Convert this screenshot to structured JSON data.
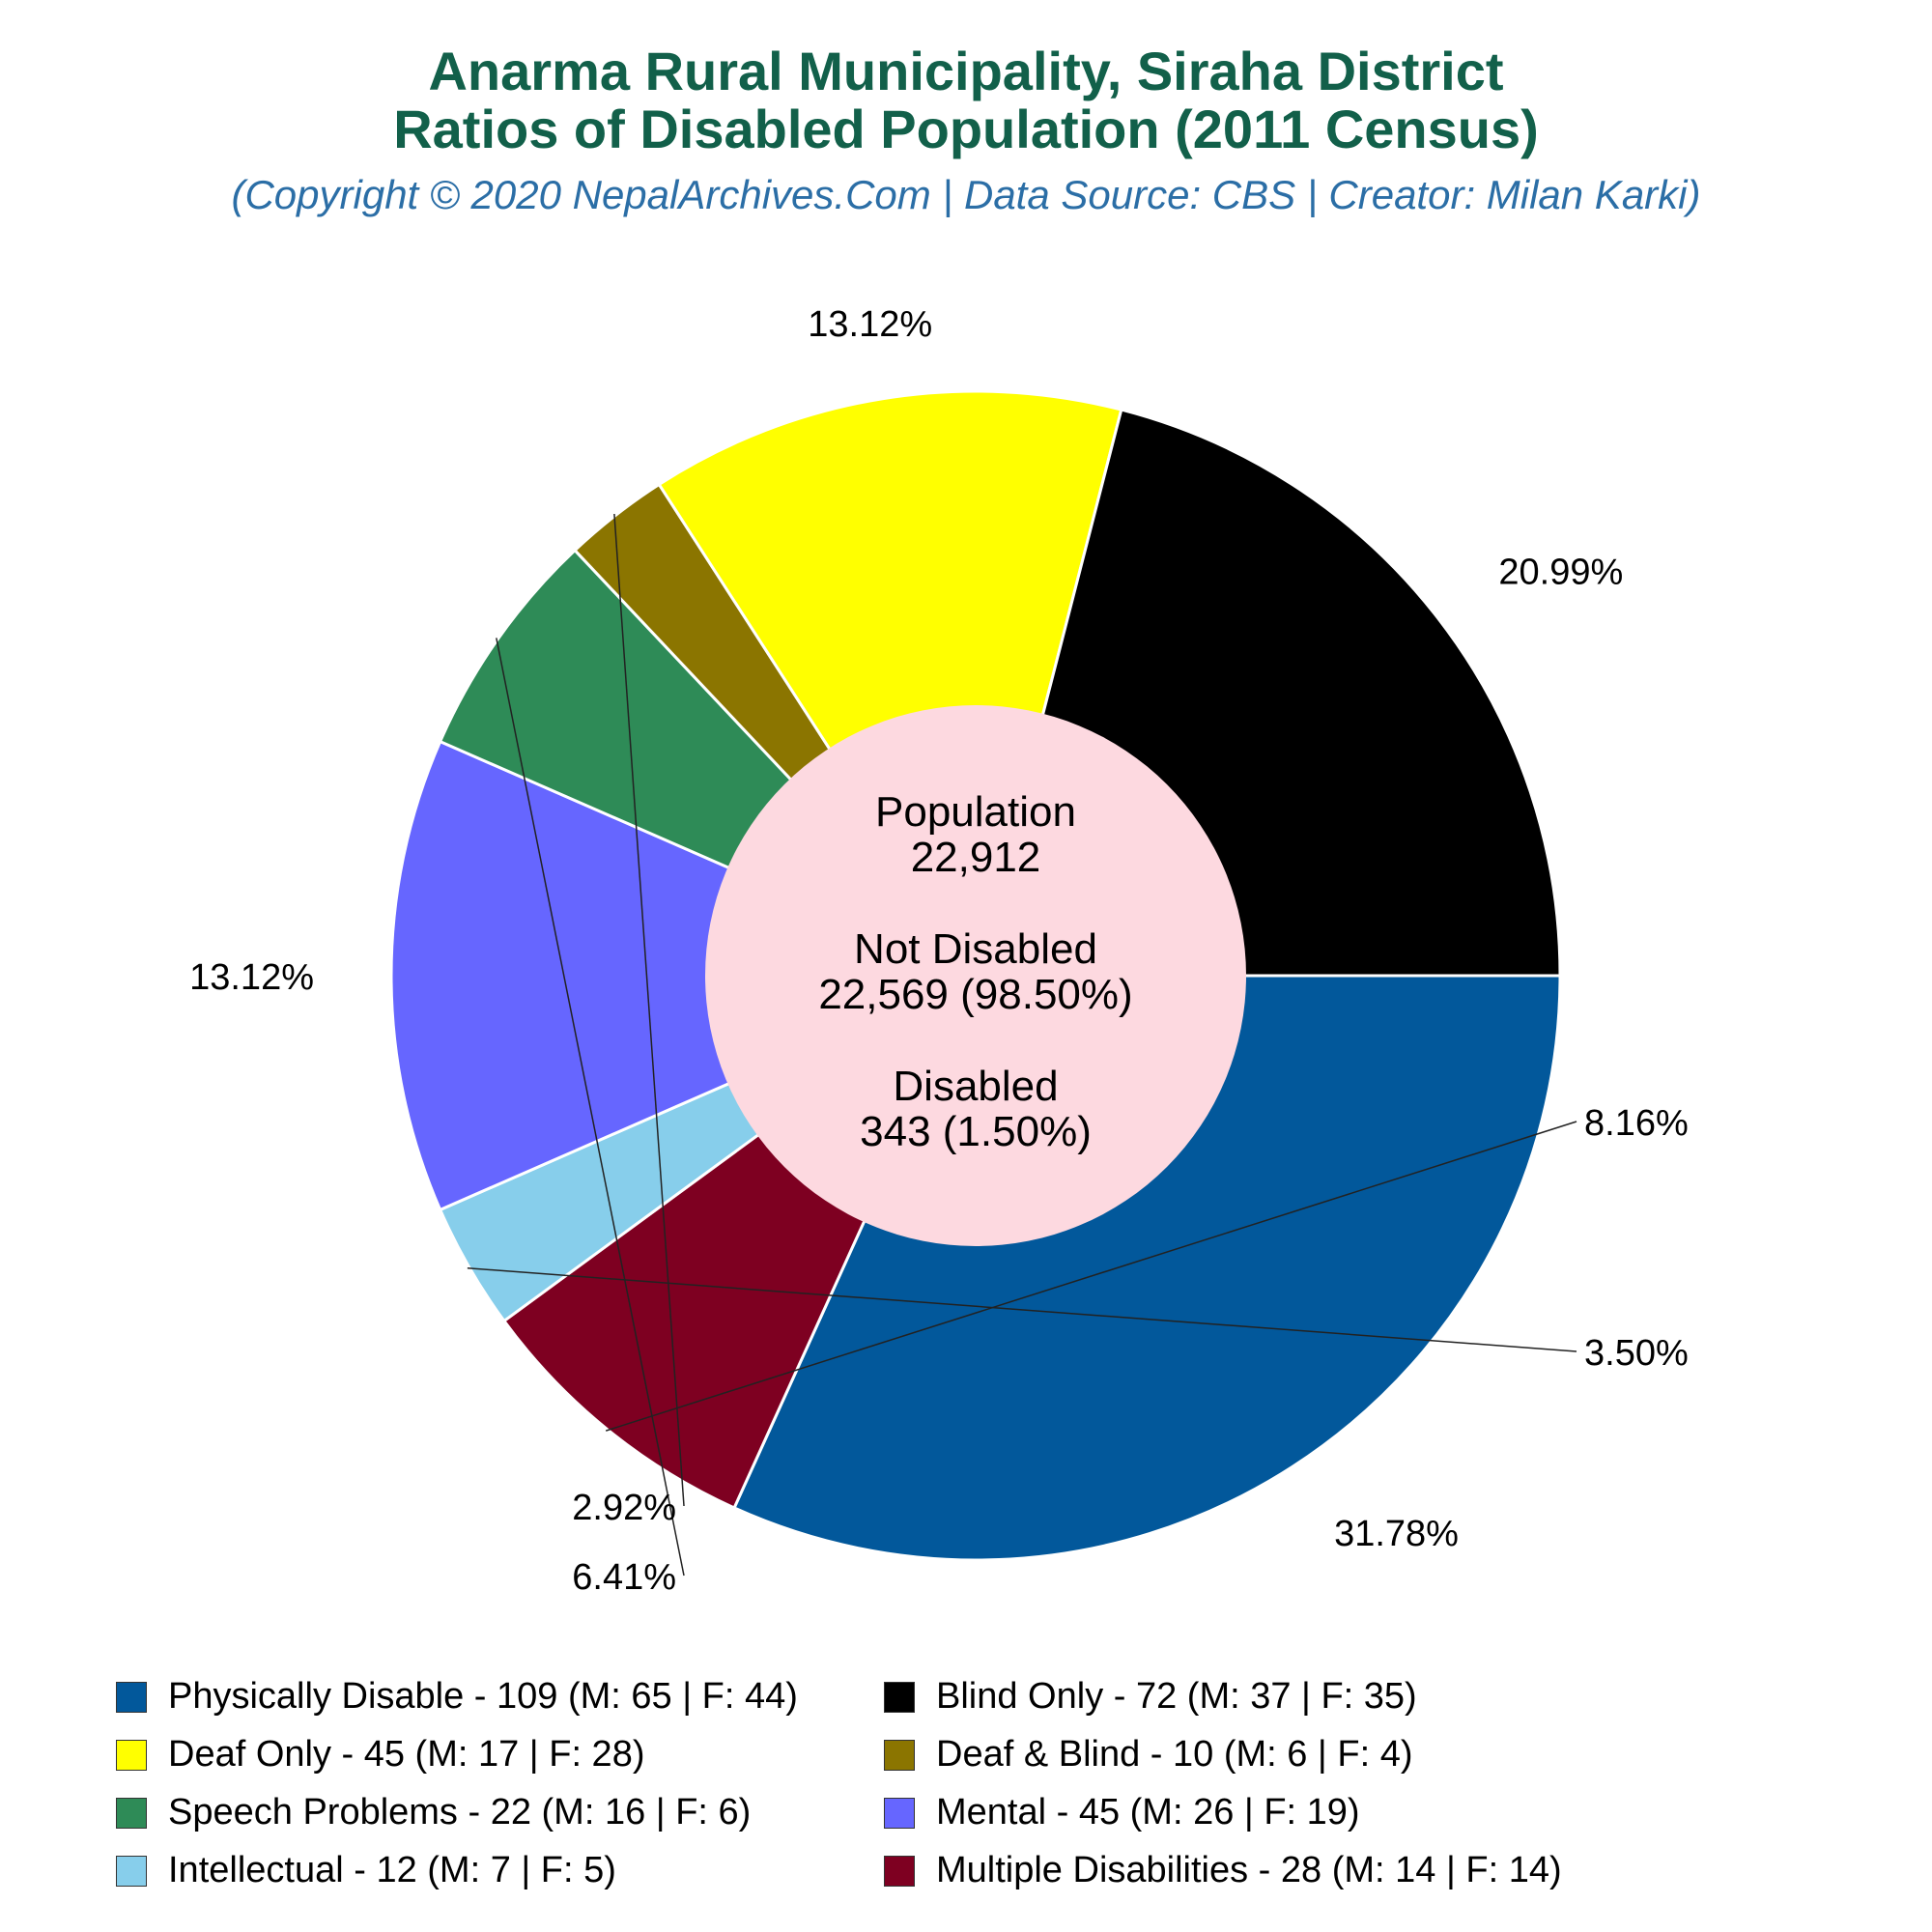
{
  "header": {
    "title_line1": "Anarma Rural Municipality, Siraha District",
    "title_line2": "Ratios of Disabled Population (2011 Census)",
    "subtitle": "(Copyright © 2020 NepalArchives.Com | Data Source: CBS | Creator: Milan Karki)"
  },
  "center": {
    "population_label": "Population",
    "population_value": "22,912",
    "not_disabled_label": "Not Disabled",
    "not_disabled_value": "22,569 (98.50%)",
    "disabled_label": "Disabled",
    "disabled_value": "343 (1.50%)",
    "fill_color": "#fdd9e0"
  },
  "chart_data": {
    "type": "pie",
    "title": "Anarma Rural Municipality, Siraha District Ratios of Disabled Population (2011 Census)",
    "slices": [
      {
        "name": "Physically Disable",
        "value": 109,
        "male": 65,
        "female": 44,
        "percent_label": "31.78%",
        "color": "#02589b",
        "legend": "Physically Disable - 109 (M: 65 | F: 44)"
      },
      {
        "name": "Multiple Disabilities",
        "value": 28,
        "male": 14,
        "female": 14,
        "percent_label": "8.16%",
        "color": "#7e0021",
        "legend": "Multiple Disabilities - 28 (M: 14 | F: 14)"
      },
      {
        "name": "Intellectual",
        "value": 12,
        "male": 7,
        "female": 5,
        "percent_label": "3.50%",
        "color": "#87ceeb",
        "legend": "Intellectual - 12 (M: 7 | F: 5)"
      },
      {
        "name": "Mental",
        "value": 45,
        "male": 26,
        "female": 19,
        "percent_label": "13.12%",
        "color": "#6666ff",
        "legend": "Mental - 45 (M: 26 | F: 19)"
      },
      {
        "name": "Speech Problems",
        "value": 22,
        "male": 16,
        "female": 6,
        "percent_label": "6.41%",
        "color": "#2e8b57",
        "legend": "Speech Problems - 22 (M: 16 | F: 6)"
      },
      {
        "name": "Deaf & Blind",
        "value": 10,
        "male": 6,
        "female": 4,
        "percent_label": "2.92%",
        "color": "#8b7500",
        "legend": "Deaf & Blind - 10 (M: 6 | F: 4)"
      },
      {
        "name": "Deaf Only",
        "value": 45,
        "male": 17,
        "female": 28,
        "percent_label": "13.12%",
        "color": "#ffff00",
        "legend": "Deaf Only - 45 (M: 17 | F: 28)"
      },
      {
        "name": "Blind Only",
        "value": 72,
        "male": 37,
        "female": 35,
        "percent_label": "20.99%",
        "color": "#000000",
        "legend": "Blind Only - 72 (M: 37 | F: 35)"
      }
    ],
    "legend_order": [
      "Physically Disable",
      "Blind Only",
      "Deaf Only",
      "Deaf & Blind",
      "Speech Problems",
      "Mental",
      "Intellectual",
      "Multiple Disabilities"
    ],
    "legend_placement": "bottom"
  }
}
